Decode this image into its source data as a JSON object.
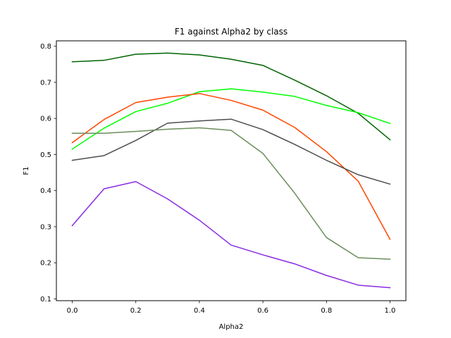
{
  "chart_data": {
    "type": "line",
    "title": "F1 against Alpha2 by class",
    "xlabel": "Alpha2",
    "ylabel": "F1",
    "xlim": [
      -0.05,
      1.05
    ],
    "ylim": [
      0.095,
      0.815
    ],
    "x_ticks": [
      0.0,
      0.2,
      0.4,
      0.6,
      0.8,
      1.0
    ],
    "x_tick_labels": [
      "0.0",
      "0.2",
      "0.4",
      "0.6",
      "0.8",
      "1.0"
    ],
    "y_ticks": [
      0.1,
      0.2,
      0.3,
      0.4,
      0.5,
      0.6,
      0.7,
      0.8
    ],
    "y_tick_labels": [
      "0.1",
      "0.2",
      "0.3",
      "0.4",
      "0.5",
      "0.6",
      "0.7",
      "0.8"
    ],
    "grid": false,
    "legend": "none",
    "x": [
      0.0,
      0.1,
      0.2,
      0.3,
      0.4,
      0.5,
      0.6,
      0.7,
      0.8,
      0.9,
      1.0
    ],
    "series": [
      {
        "color": "#006400",
        "values": [
          0.757,
          0.761,
          0.778,
          0.781,
          0.776,
          0.764,
          0.747,
          0.706,
          0.663,
          0.614,
          0.541
        ]
      },
      {
        "color": "#00ff00",
        "values": [
          0.515,
          0.573,
          0.619,
          0.642,
          0.674,
          0.682,
          0.673,
          0.661,
          0.636,
          0.616,
          0.586
        ]
      },
      {
        "color": "#ff4500",
        "values": [
          0.533,
          0.597,
          0.644,
          0.659,
          0.669,
          0.65,
          0.623,
          0.575,
          0.508,
          0.426,
          0.265
        ]
      },
      {
        "color": "#4d4d4d",
        "values": [
          0.484,
          0.497,
          0.539,
          0.587,
          0.593,
          0.598,
          0.569,
          0.528,
          0.484,
          0.444,
          0.418
        ]
      },
      {
        "color": "#6b8e5a",
        "values": [
          0.559,
          0.559,
          0.564,
          0.57,
          0.574,
          0.567,
          0.503,
          0.393,
          0.27,
          0.214,
          0.21
        ]
      },
      {
        "color": "#8a2be2",
        "values": [
          0.303,
          0.405,
          0.425,
          0.377,
          0.318,
          0.249,
          0.222,
          0.197,
          0.165,
          0.138,
          0.131
        ]
      }
    ]
  }
}
